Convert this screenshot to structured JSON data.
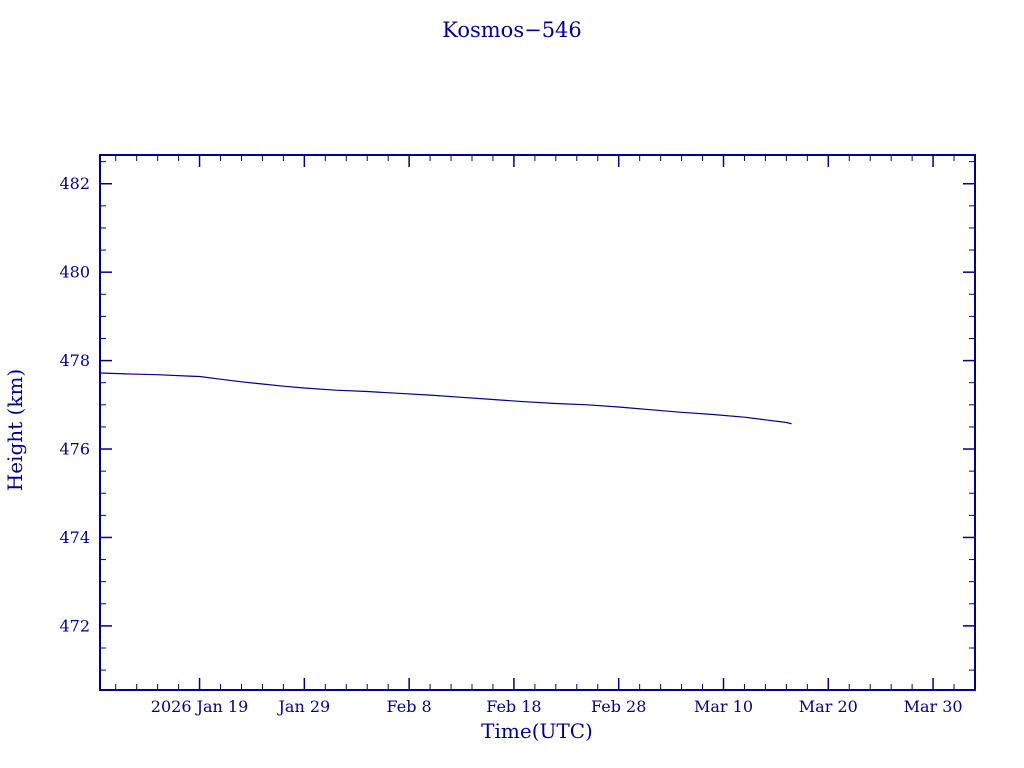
{
  "chart_data": {
    "type": "line",
    "title": "Kosmos−546",
    "xlabel": "Time(UTC)",
    "ylabel": "Height (km)",
    "line_color": "#00008B",
    "background_color": "#ffffff",
    "grid": false,
    "legend": "none",
    "x_domain_days": [
      -9.5,
      74
    ],
    "y_domain": [
      470.55,
      482.65
    ],
    "y_ticks": [
      472,
      474,
      476,
      478,
      480,
      482
    ],
    "x_ticks": [
      {
        "day": 0,
        "label": "2026 Jan 19"
      },
      {
        "day": 10,
        "label": "Jan 29"
      },
      {
        "day": 20,
        "label": "Feb 8"
      },
      {
        "day": 30,
        "label": "Feb 18"
      },
      {
        "day": 40,
        "label": "Feb 28"
      },
      {
        "day": 50,
        "label": "Mar 10"
      },
      {
        "day": 60,
        "label": "Mar 20"
      },
      {
        "day": 70,
        "label": "Mar 30"
      }
    ],
    "x_minor_step_days": 2,
    "y_minor_step": 0.5,
    "series": [
      {
        "name": "height-km",
        "points": [
          [
            -9.5,
            477.72
          ],
          [
            -7,
            477.7
          ],
          [
            -4,
            477.68
          ],
          [
            -1,
            477.65
          ],
          [
            0,
            477.64
          ],
          [
            2,
            477.58
          ],
          [
            4,
            477.52
          ],
          [
            6,
            477.47
          ],
          [
            8,
            477.42
          ],
          [
            10,
            477.38
          ],
          [
            13,
            477.33
          ],
          [
            16,
            477.3
          ],
          [
            19,
            477.26
          ],
          [
            22,
            477.22
          ],
          [
            25,
            477.17
          ],
          [
            28,
            477.12
          ],
          [
            31,
            477.07
          ],
          [
            34,
            477.03
          ],
          [
            37,
            477.0
          ],
          [
            40,
            476.95
          ],
          [
            43,
            476.89
          ],
          [
            46,
            476.83
          ],
          [
            49,
            476.78
          ],
          [
            52,
            476.72
          ],
          [
            54,
            476.66
          ],
          [
            56,
            476.6
          ],
          [
            56.5,
            476.57
          ]
        ]
      }
    ]
  }
}
